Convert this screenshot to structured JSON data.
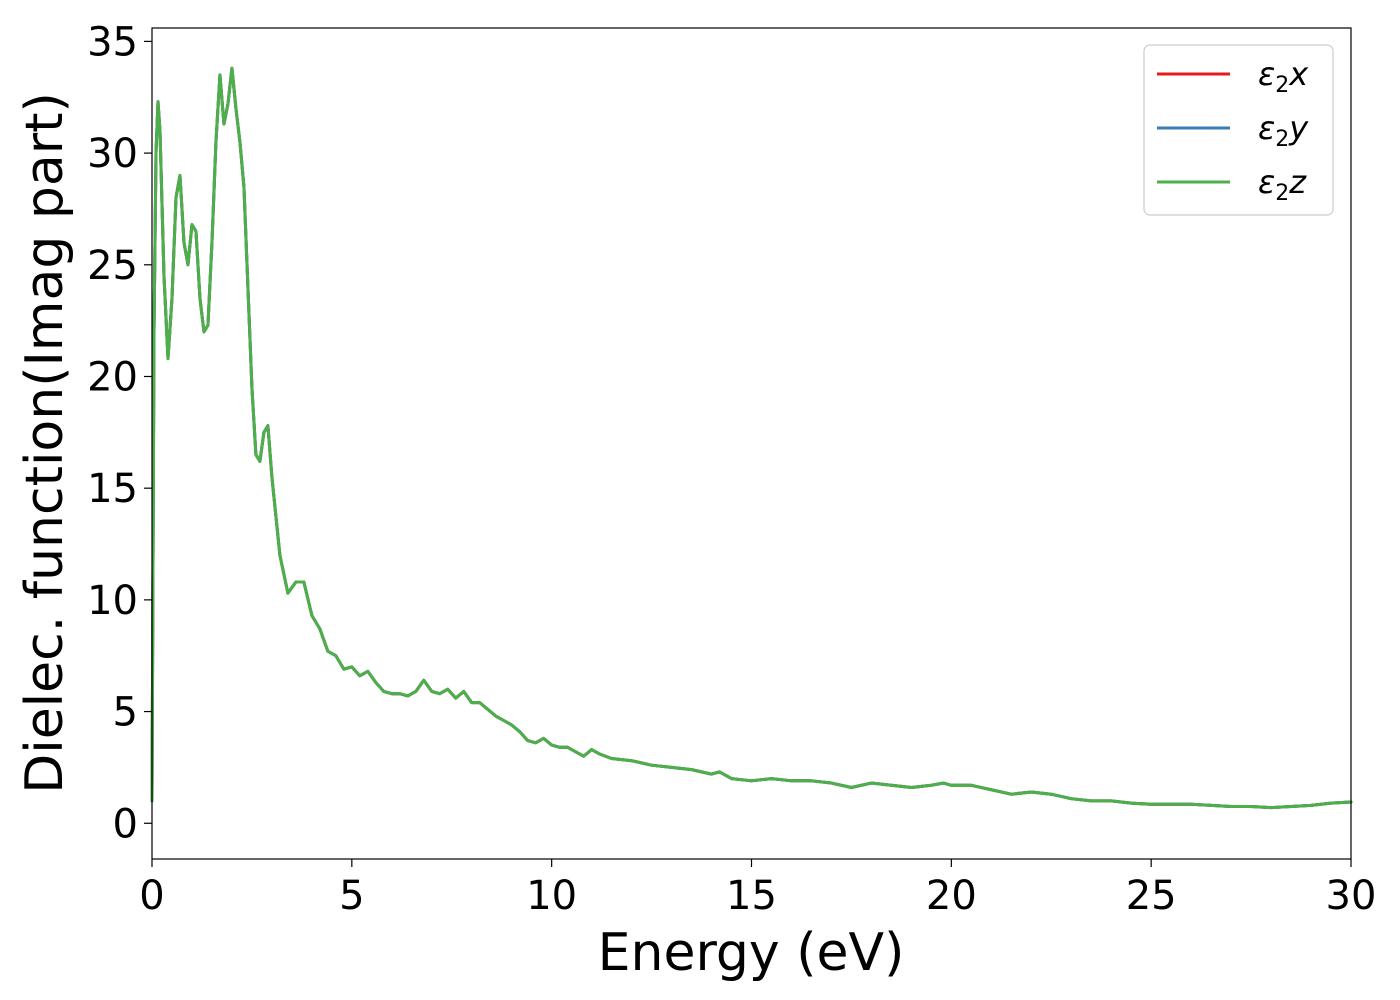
{
  "chart_data": {
    "type": "line",
    "xlabel": "Energy (eV)",
    "ylabel": "Dielec. function(Imag part)",
    "xlim": [
      0,
      30
    ],
    "ylim": [
      -1.6,
      35.6
    ],
    "xticks": [
      0,
      5,
      10,
      15,
      20,
      25,
      30
    ],
    "yticks": [
      0,
      5,
      10,
      15,
      20,
      25,
      30,
      35
    ],
    "grid": false,
    "legend_position": "top-right",
    "series": [
      {
        "name": "ε2x",
        "name_parts": {
          "base": "ε",
          "sub": "2",
          "suffix": "x"
        },
        "color": "#e41a1c",
        "x": [
          0,
          0.05,
          0.1,
          0.15,
          0.2,
          0.3,
          0.4,
          0.5,
          0.6,
          0.7,
          0.8,
          0.9,
          1.0,
          1.1,
          1.2,
          1.3,
          1.4,
          1.5,
          1.6,
          1.7,
          1.8,
          1.9,
          2.0,
          2.1,
          2.2,
          2.3,
          2.4,
          2.5,
          2.6,
          2.7,
          2.8,
          2.9,
          3.0,
          3.2,
          3.4,
          3.6,
          3.8,
          4.0,
          4.2,
          4.4,
          4.6,
          4.8,
          5.0,
          5.2,
          5.4,
          5.6,
          5.8,
          6.0,
          6.2,
          6.4,
          6.6,
          6.8,
          7.0,
          7.2,
          7.4,
          7.6,
          7.8,
          8.0,
          8.2,
          8.4,
          8.6,
          8.8,
          9.0,
          9.2,
          9.4,
          9.6,
          9.8,
          10.0,
          10.2,
          10.4,
          10.6,
          10.8,
          11.0,
          11.2,
          11.5,
          12.0,
          12.5,
          13.0,
          13.5,
          14.0,
          14.2,
          14.5,
          15.0,
          15.5,
          16.0,
          16.5,
          17.0,
          17.5,
          18.0,
          18.5,
          19.0,
          19.5,
          19.8,
          20.0,
          20.5,
          21.0,
          21.5,
          22.0,
          22.5,
          23.0,
          23.5,
          24.0,
          24.5,
          25.0,
          25.5,
          26.0,
          26.5,
          27.0,
          27.5,
          28.0,
          28.5,
          29.0,
          29.5,
          30.0
        ],
        "y": [
          1.0,
          22.0,
          30.0,
          32.3,
          31.0,
          24.5,
          20.8,
          23.5,
          28.0,
          29.0,
          26.0,
          25.0,
          26.8,
          26.5,
          23.5,
          22.0,
          22.3,
          26.0,
          30.5,
          33.5,
          31.3,
          32.2,
          33.8,
          32.0,
          30.5,
          28.5,
          24.0,
          19.5,
          16.5,
          16.2,
          17.5,
          17.8,
          15.5,
          12.0,
          10.3,
          10.8,
          10.8,
          9.3,
          8.7,
          7.7,
          7.5,
          6.9,
          7.0,
          6.6,
          6.8,
          6.3,
          5.9,
          5.8,
          5.8,
          5.7,
          5.9,
          6.4,
          5.9,
          5.8,
          6.0,
          5.6,
          5.9,
          5.4,
          5.4,
          5.1,
          4.8,
          4.6,
          4.4,
          4.1,
          3.7,
          3.6,
          3.8,
          3.5,
          3.4,
          3.4,
          3.2,
          3.0,
          3.3,
          3.1,
          2.9,
          2.8,
          2.6,
          2.5,
          2.4,
          2.2,
          2.3,
          2.0,
          1.9,
          2.0,
          1.9,
          1.9,
          1.8,
          1.6,
          1.8,
          1.7,
          1.6,
          1.7,
          1.8,
          1.7,
          1.7,
          1.5,
          1.3,
          1.4,
          1.3,
          1.1,
          1.0,
          1.0,
          0.9,
          0.85,
          0.85,
          0.85,
          0.8,
          0.75,
          0.75,
          0.7,
          0.75,
          0.8,
          0.9,
          0.95
        ]
      },
      {
        "name": "ε2y",
        "name_parts": {
          "base": "ε",
          "sub": "2",
          "suffix": "y"
        },
        "color": "#377eb8",
        "x": [
          0,
          0.05,
          0.1,
          0.15,
          0.2,
          0.3,
          0.4,
          0.5,
          0.6,
          0.7,
          0.8,
          0.9,
          1.0,
          1.1,
          1.2,
          1.3,
          1.4,
          1.5,
          1.6,
          1.7,
          1.8,
          1.9,
          2.0,
          2.1,
          2.2,
          2.3,
          2.4,
          2.5,
          2.6,
          2.7,
          2.8,
          2.9,
          3.0,
          3.2,
          3.4,
          3.6,
          3.8,
          4.0,
          4.2,
          4.4,
          4.6,
          4.8,
          5.0,
          5.2,
          5.4,
          5.6,
          5.8,
          6.0,
          6.2,
          6.4,
          6.6,
          6.8,
          7.0,
          7.2,
          7.4,
          7.6,
          7.8,
          8.0,
          8.2,
          8.4,
          8.6,
          8.8,
          9.0,
          9.2,
          9.4,
          9.6,
          9.8,
          10.0,
          10.2,
          10.4,
          10.6,
          10.8,
          11.0,
          11.2,
          11.5,
          12.0,
          12.5,
          13.0,
          13.5,
          14.0,
          14.2,
          14.5,
          15.0,
          15.5,
          16.0,
          16.5,
          17.0,
          17.5,
          18.0,
          18.5,
          19.0,
          19.5,
          19.8,
          20.0,
          20.5,
          21.0,
          21.5,
          22.0,
          22.5,
          23.0,
          23.5,
          24.0,
          24.5,
          25.0,
          25.5,
          26.0,
          26.5,
          27.0,
          27.5,
          28.0,
          28.5,
          29.0,
          29.5,
          30.0
        ],
        "y": [
          1.0,
          22.0,
          30.0,
          32.3,
          31.0,
          24.5,
          20.8,
          23.5,
          28.0,
          29.0,
          26.0,
          25.0,
          26.8,
          26.5,
          23.5,
          22.0,
          22.3,
          26.0,
          30.5,
          33.5,
          31.3,
          32.2,
          33.8,
          32.0,
          30.5,
          28.5,
          24.0,
          19.5,
          16.5,
          16.2,
          17.5,
          17.8,
          15.5,
          12.0,
          10.3,
          10.8,
          10.8,
          9.3,
          8.7,
          7.7,
          7.5,
          6.9,
          7.0,
          6.6,
          6.8,
          6.3,
          5.9,
          5.8,
          5.8,
          5.7,
          5.9,
          6.4,
          5.9,
          5.8,
          6.0,
          5.6,
          5.9,
          5.4,
          5.4,
          5.1,
          4.8,
          4.6,
          4.4,
          4.1,
          3.7,
          3.6,
          3.8,
          3.5,
          3.4,
          3.4,
          3.2,
          3.0,
          3.3,
          3.1,
          2.9,
          2.8,
          2.6,
          2.5,
          2.4,
          2.2,
          2.3,
          2.0,
          1.9,
          2.0,
          1.9,
          1.9,
          1.8,
          1.6,
          1.8,
          1.7,
          1.6,
          1.7,
          1.8,
          1.7,
          1.7,
          1.5,
          1.3,
          1.4,
          1.3,
          1.1,
          1.0,
          1.0,
          0.9,
          0.85,
          0.85,
          0.85,
          0.8,
          0.75,
          0.75,
          0.7,
          0.75,
          0.8,
          0.9,
          0.95
        ]
      },
      {
        "name": "ε2z",
        "name_parts": {
          "base": "ε",
          "sub": "2",
          "suffix": "z"
        },
        "color": "#4daf4a",
        "x": [
          0,
          0.05,
          0.1,
          0.15,
          0.2,
          0.3,
          0.4,
          0.5,
          0.6,
          0.7,
          0.8,
          0.9,
          1.0,
          1.1,
          1.2,
          1.3,
          1.4,
          1.5,
          1.6,
          1.7,
          1.8,
          1.9,
          2.0,
          2.1,
          2.2,
          2.3,
          2.4,
          2.5,
          2.6,
          2.7,
          2.8,
          2.9,
          3.0,
          3.2,
          3.4,
          3.6,
          3.8,
          4.0,
          4.2,
          4.4,
          4.6,
          4.8,
          5.0,
          5.2,
          5.4,
          5.6,
          5.8,
          6.0,
          6.2,
          6.4,
          6.6,
          6.8,
          7.0,
          7.2,
          7.4,
          7.6,
          7.8,
          8.0,
          8.2,
          8.4,
          8.6,
          8.8,
          9.0,
          9.2,
          9.4,
          9.6,
          9.8,
          10.0,
          10.2,
          10.4,
          10.6,
          10.8,
          11.0,
          11.2,
          11.5,
          12.0,
          12.5,
          13.0,
          13.5,
          14.0,
          14.2,
          14.5,
          15.0,
          15.5,
          16.0,
          16.5,
          17.0,
          17.5,
          18.0,
          18.5,
          19.0,
          19.5,
          19.8,
          20.0,
          20.5,
          21.0,
          21.5,
          22.0,
          22.5,
          23.0,
          23.5,
          24.0,
          24.5,
          25.0,
          25.5,
          26.0,
          26.5,
          27.0,
          27.5,
          28.0,
          28.5,
          29.0,
          29.5,
          30.0
        ],
        "y": [
          1.0,
          22.0,
          30.0,
          32.3,
          31.0,
          24.5,
          20.8,
          23.5,
          28.0,
          29.0,
          26.0,
          25.0,
          26.8,
          26.5,
          23.5,
          22.0,
          22.3,
          26.0,
          30.5,
          33.5,
          31.3,
          32.2,
          33.8,
          32.0,
          30.5,
          28.5,
          24.0,
          19.5,
          16.5,
          16.2,
          17.5,
          17.8,
          15.5,
          12.0,
          10.3,
          10.8,
          10.8,
          9.3,
          8.7,
          7.7,
          7.5,
          6.9,
          7.0,
          6.6,
          6.8,
          6.3,
          5.9,
          5.8,
          5.8,
          5.7,
          5.9,
          6.4,
          5.9,
          5.8,
          6.0,
          5.6,
          5.9,
          5.4,
          5.4,
          5.1,
          4.8,
          4.6,
          4.4,
          4.1,
          3.7,
          3.6,
          3.8,
          3.5,
          3.4,
          3.4,
          3.2,
          3.0,
          3.3,
          3.1,
          2.9,
          2.8,
          2.6,
          2.5,
          2.4,
          2.2,
          2.3,
          2.0,
          1.9,
          2.0,
          1.9,
          1.9,
          1.8,
          1.6,
          1.8,
          1.7,
          1.6,
          1.7,
          1.8,
          1.7,
          1.7,
          1.5,
          1.3,
          1.4,
          1.3,
          1.1,
          1.0,
          1.0,
          0.9,
          0.85,
          0.85,
          0.85,
          0.8,
          0.75,
          0.75,
          0.7,
          0.75,
          0.8,
          0.9,
          0.95
        ]
      }
    ]
  }
}
